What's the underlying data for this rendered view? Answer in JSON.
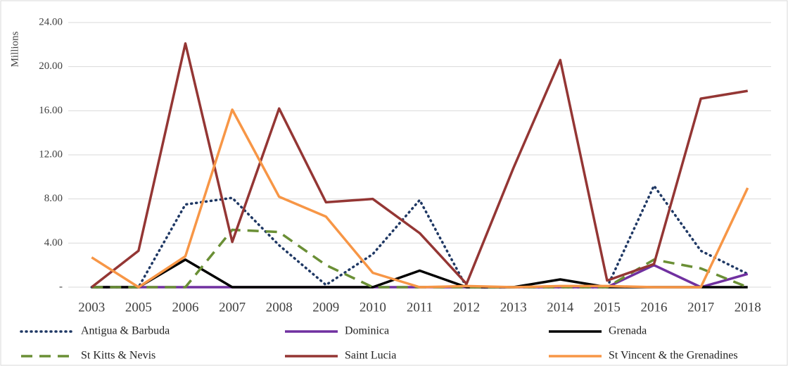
{
  "chart_data": {
    "type": "line",
    "y_label": "Millions",
    "categories": [
      "2003",
      "2005",
      "2006",
      "2007",
      "2008",
      "2009",
      "2010",
      "2011",
      "2012",
      "2013",
      "2014",
      "2015",
      "2016",
      "2017",
      "2018"
    ],
    "ylim": [
      0,
      24
    ],
    "yticks": [
      {
        "value": 0,
        "label": "-"
      },
      {
        "value": 4,
        "label": "4.00"
      },
      {
        "value": 8,
        "label": "8.00"
      },
      {
        "value": 12,
        "label": "12.00"
      },
      {
        "value": 16,
        "label": "16.00"
      },
      {
        "value": 20,
        "label": "20.00"
      },
      {
        "value": 24,
        "label": "24.00"
      }
    ],
    "grid": true,
    "legend": "bottom",
    "series": [
      {
        "name": "Antigua & Barbuda",
        "color": "#1f3864",
        "style": "dotted",
        "values": [
          0,
          0,
          7.5,
          8.1,
          3.8,
          0.2,
          3.0,
          7.9,
          0,
          0,
          0,
          0,
          9.2,
          3.3,
          1.2
        ]
      },
      {
        "name": "Dominica",
        "color": "#7030a0",
        "style": "solid",
        "values": [
          0,
          0,
          0,
          0,
          0,
          0,
          0,
          0,
          0,
          0,
          0,
          0,
          2.0,
          0,
          1.2
        ]
      },
      {
        "name": "Grenada",
        "color": "#000000",
        "style": "solid",
        "values": [
          0,
          0,
          2.5,
          0,
          0,
          0,
          0,
          1.5,
          0,
          0,
          0.7,
          0,
          0,
          0,
          0
        ]
      },
      {
        "name": "St Kitts & Nevis",
        "color": "#6a8f35",
        "style": "dashed",
        "values": [
          0,
          0,
          0,
          5.2,
          5.0,
          2.0,
          0,
          0,
          0,
          0,
          0,
          0,
          2.5,
          1.7,
          0
        ]
      },
      {
        "name": "Saint Lucia",
        "color": "#943634",
        "style": "solid",
        "values": [
          0,
          3.3,
          22.1,
          4.1,
          16.2,
          7.7,
          8.0,
          4.9,
          0.3,
          10.8,
          20.6,
          0.6,
          2.1,
          17.1,
          17.8
        ]
      },
      {
        "name": "St Vincent & the Grenadines",
        "color": "#f79646",
        "style": "solid",
        "values": [
          2.7,
          0,
          2.8,
          16.1,
          8.2,
          6.4,
          1.3,
          0,
          0.1,
          0,
          0.1,
          0.1,
          0,
          0,
          9.0
        ]
      }
    ]
  }
}
